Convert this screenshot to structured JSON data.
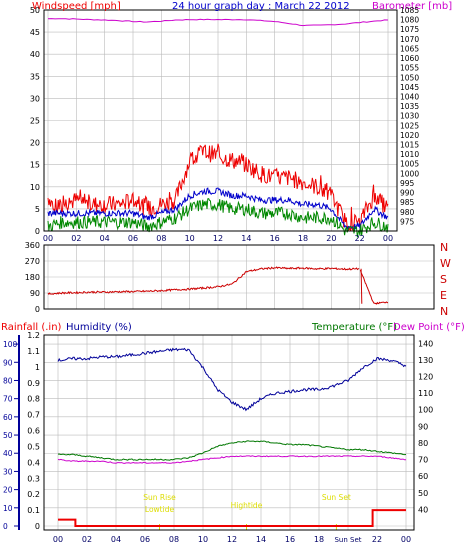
{
  "title": "24 hour graph day : March 22 2012",
  "colors": {
    "wind": "#ee0000",
    "wind_avg": "#0000cc",
    "wind_low": "#008800",
    "baro": "#cc00cc",
    "dir": "#cc0000",
    "hum": "#000099",
    "temp": "#007700",
    "dew": "#cc00cc",
    "rain": "#ee0000",
    "event": "#dddd00",
    "grid": "#bbbbbb",
    "axis_text": "#000000",
    "dark_axis": "#000066"
  },
  "chart_data": [
    {
      "type": "line",
      "panel": "wind_baro",
      "title": "24 hour graph day : March 22 2012",
      "left_axis": {
        "label": "Windspeed [mph]",
        "ylim": [
          0,
          50
        ],
        "ticks": [
          "0",
          "5",
          "10",
          "15",
          "20",
          "25",
          "30",
          "35",
          "40",
          "45",
          "50"
        ]
      },
      "right_axis": {
        "label": "Barometer [mb]",
        "ylim": [
          970,
          1085
        ],
        "ticks": [
          "975",
          "980",
          "985",
          "990",
          "995",
          "1000",
          "1005",
          "1010",
          "1015",
          "1020",
          "1025",
          "1030",
          "1035",
          "1040",
          "1045",
          "1050",
          "1055",
          "1060",
          "1065",
          "1070",
          "1075",
          "1080",
          "1085"
        ]
      },
      "x_ticks": [
        "00",
        "02",
        "04",
        "06",
        "08",
        "10",
        "12",
        "14",
        "16",
        "18",
        "20",
        "22",
        "00"
      ],
      "x": [
        0,
        1,
        2,
        3,
        4,
        5,
        6,
        7,
        8,
        9,
        10,
        11,
        12,
        13,
        14,
        15,
        16,
        17,
        18,
        19,
        20,
        21,
        22,
        23,
        24
      ],
      "series": [
        {
          "role": "gust",
          "values": [
            6,
            6,
            7,
            6,
            6,
            6,
            7,
            5,
            6,
            7,
            16,
            18,
            17,
            16,
            15,
            13,
            12,
            12,
            11,
            10,
            8,
            2,
            2,
            8,
            5
          ]
        },
        {
          "role": "average",
          "values": [
            4,
            4,
            4,
            4,
            4,
            4,
            4,
            3,
            4,
            5,
            8,
            9,
            9,
            8,
            8,
            7,
            7,
            7,
            6,
            6,
            5,
            1,
            1,
            5,
            3
          ]
        },
        {
          "role": "lull",
          "values": [
            1,
            2,
            2,
            2,
            2,
            2,
            2,
            1,
            2,
            3,
            5,
            6,
            6,
            5,
            5,
            4,
            4,
            4,
            3,
            3,
            3,
            0,
            0,
            2,
            1
          ]
        },
        {
          "role": "barometer",
          "values": [
            1080.5,
            1080.5,
            1080.3,
            1080.0,
            1079.8,
            1079.5,
            1079.0,
            1078.8,
            1079.2,
            1079.8,
            1080.0,
            1080.0,
            1080.0,
            1080.0,
            1080.0,
            1079.5,
            1079.0,
            1078.0,
            1077.0,
            1077.0,
            1077.3,
            1077.8,
            1078.5,
            1079.2,
            1079.8
          ]
        }
      ]
    },
    {
      "type": "line",
      "panel": "wind_direction",
      "left_axis": {
        "label": "",
        "ylim": [
          0,
          360
        ],
        "ticks": [
          "0",
          "90",
          "180",
          "270",
          "360"
        ]
      },
      "right_labels": [
        "N",
        "W",
        "S",
        "E",
        "N"
      ],
      "x": [
        0,
        1,
        2,
        3,
        4,
        5,
        6,
        7,
        8,
        9,
        10,
        11,
        12,
        13,
        14,
        15,
        16,
        17,
        18,
        19,
        20,
        21,
        22,
        23,
        24
      ],
      "series": [
        {
          "role": "direction",
          "values": [
            85,
            90,
            92,
            95,
            95,
            97,
            98,
            100,
            103,
            108,
            112,
            118,
            125,
            140,
            210,
            225,
            232,
            228,
            230,
            226,
            228,
            224,
            226,
            30,
            40
          ]
        }
      ]
    },
    {
      "type": "line",
      "panel": "rain_hum_temp",
      "labels": {
        "rain": "Rainfall (.in)",
        "humidity": "Humidity (%)",
        "temperature": "Temperature (°F)",
        "dew": "Dew Point (°F)"
      },
      "rain_axis": {
        "ylim": [
          0,
          1.2
        ],
        "ticks": [
          "0",
          "0.1",
          "0.2",
          "0.3",
          "0.4",
          "0.5",
          "0.6",
          "0.7",
          "0.8",
          "0.9",
          "1",
          "1.1",
          "1.2"
        ]
      },
      "humidity_axis": {
        "ylim": [
          0,
          105
        ],
        "ticks": [
          "0",
          "10",
          "20",
          "30",
          "40",
          "50",
          "60",
          "70",
          "80",
          "90",
          "100"
        ]
      },
      "temp_axis": {
        "ylim": [
          30,
          145
        ],
        "ticks": [
          "40",
          "50",
          "60",
          "70",
          "80",
          "90",
          "100",
          "110",
          "120",
          "130",
          "140"
        ]
      },
      "x_ticks": [
        "00",
        "02",
        "04",
        "06",
        "08",
        "10",
        "12",
        "14",
        "16",
        "18",
        "Sun Set",
        "22",
        "00"
      ],
      "events": [
        {
          "label": "Sun Rise",
          "x": 7.0
        },
        {
          "label": "Lowtide",
          "x": 7.0
        },
        {
          "label": "Hightide",
          "x": 13.0
        },
        {
          "label": "Sun Set",
          "x": 19.2
        }
      ],
      "x": [
        0,
        1,
        2,
        3,
        4,
        5,
        6,
        7,
        8,
        9,
        10,
        11,
        12,
        13,
        14,
        15,
        16,
        17,
        18,
        19,
        20,
        21,
        22,
        23,
        24
      ],
      "series": [
        {
          "role": "humidity",
          "values": [
            91,
            92,
            92,
            93,
            93,
            94,
            95,
            96,
            97,
            97,
            87,
            75,
            68,
            64,
            70,
            73,
            74,
            75,
            75,
            77,
            80,
            87,
            92,
            91,
            88
          ]
        },
        {
          "role": "temperature",
          "values": [
            73,
            73,
            72,
            71,
            70,
            70,
            70,
            70,
            70,
            71,
            74,
            78,
            80,
            81,
            81,
            80,
            79,
            79,
            78,
            77,
            76,
            76,
            75,
            74,
            73
          ]
        },
        {
          "role": "dew_point",
          "values": [
            70,
            69,
            69,
            69,
            68,
            68,
            68,
            68,
            68,
            69,
            70,
            71,
            72,
            72,
            72,
            72,
            72,
            72,
            72,
            72,
            72,
            72,
            72,
            71,
            70
          ]
        },
        {
          "role": "rain",
          "values": [
            0.04,
            0.04,
            0.0,
            0.0,
            0.0,
            0.0,
            0.0,
            0.0,
            0.0,
            0.0,
            0.0,
            0.0,
            0.0,
            0.0,
            0.0,
            0.0,
            0.0,
            0.0,
            0.0,
            0.0,
            0.0,
            0.0,
            0.1,
            0.1,
            0.1
          ]
        }
      ]
    }
  ]
}
